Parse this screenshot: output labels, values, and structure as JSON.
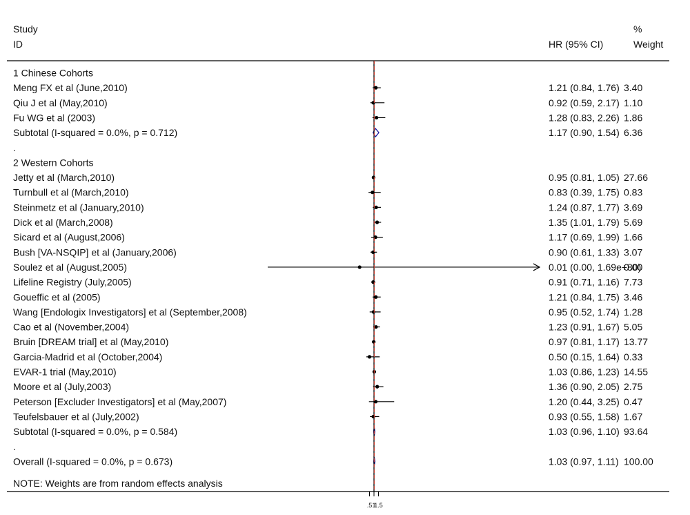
{
  "header": {
    "study_top": "Study",
    "study_bottom": "ID",
    "effect": "HR (95% CI)",
    "weight_top": "%",
    "weight_bottom": "Weight"
  },
  "note": "NOTE: Weights are from random effects analysis",
  "colors": {
    "marker": "#000000",
    "diamond": "#1a1aa0",
    "overall_line": "#c0392b",
    "axis": "#000000"
  },
  "chart_data": {
    "type": "forest",
    "axis_ticks": [
      ".5",
      "1",
      "1.5"
    ],
    "null_value": 1,
    "overall_estimate": 1.03,
    "rows": [
      {
        "kind": "group",
        "label": "1  Chinese Cohorts"
      },
      {
        "kind": "study",
        "label": "Meng FX et al (June,2010)",
        "hr": 1.21,
        "lo": 0.84,
        "hi": 1.76,
        "text": "1.21 (0.84, 1.76)",
        "weight": "3.40"
      },
      {
        "kind": "study",
        "label": "Qiu J et al (May,2010)",
        "hr": 0.92,
        "lo": 0.59,
        "hi": 2.17,
        "text": "0.92 (0.59, 2.17)",
        "weight": "1.10"
      },
      {
        "kind": "study",
        "label": "Fu WG et al (2003)",
        "hr": 1.28,
        "lo": 0.83,
        "hi": 2.26,
        "text": "1.28 (0.83, 2.26)",
        "weight": "1.86"
      },
      {
        "kind": "subtotal",
        "label": "Subtotal  (I-squared = 0.0%, p = 0.712)",
        "hr": 1.17,
        "lo": 0.9,
        "hi": 1.54,
        "text": "1.17 (0.90, 1.54)",
        "weight": "6.36"
      },
      {
        "kind": "spacer",
        "label": "."
      },
      {
        "kind": "group",
        "label": "2  Western Cohorts"
      },
      {
        "kind": "study",
        "label": "Jetty et al (March,2010)",
        "hr": 0.95,
        "lo": 0.81,
        "hi": 1.05,
        "text": "0.95 (0.81, 1.05)",
        "weight": "27.66"
      },
      {
        "kind": "study",
        "label": "Turnbull et al (March,2010)",
        "hr": 0.83,
        "lo": 0.39,
        "hi": 1.75,
        "text": "0.83 (0.39, 1.75)",
        "weight": "0.83"
      },
      {
        "kind": "study",
        "label": "Steinmetz et al (January,2010)",
        "hr": 1.24,
        "lo": 0.87,
        "hi": 1.77,
        "text": "1.24 (0.87, 1.77)",
        "weight": "3.69"
      },
      {
        "kind": "study",
        "label": "Dick et al (March,2008)",
        "hr": 1.35,
        "lo": 1.01,
        "hi": 1.79,
        "text": "1.35 (1.01, 1.79)",
        "weight": "5.69"
      },
      {
        "kind": "study",
        "label": "Sicard et al (August,2006)",
        "hr": 1.17,
        "lo": 0.69,
        "hi": 1.99,
        "text": "1.17 (0.69, 1.99)",
        "weight": "1.66"
      },
      {
        "kind": "study",
        "label": "Bush [VA-NSQIP] et al (January,2006)",
        "hr": 0.9,
        "lo": 0.61,
        "hi": 1.33,
        "text": "0.90 (0.61, 1.33)",
        "weight": "3.07"
      },
      {
        "kind": "study",
        "label": "Soulez et al (August,2005)",
        "hr": 0.01,
        "lo": 0.0,
        "hi": 1.69e+80,
        "text": "0.01 (0.00, 1.69e+80)",
        "weight": "0.00",
        "marker_hint": -0.6,
        "arrow_left": true,
        "arrow_right": true
      },
      {
        "kind": "study",
        "label": "Lifeline Registry (July,2005)",
        "hr": 0.91,
        "lo": 0.71,
        "hi": 1.16,
        "text": "0.91 (0.71, 1.16)",
        "weight": "7.73"
      },
      {
        "kind": "study",
        "label": "Goueffic et al (2005)",
        "hr": 1.21,
        "lo": 0.84,
        "hi": 1.75,
        "text": "1.21 (0.84, 1.75)",
        "weight": "3.46"
      },
      {
        "kind": "study",
        "label": "Wang [Endologix Investigators] et al (September,2008)",
        "hr": 0.95,
        "lo": 0.52,
        "hi": 1.74,
        "text": "0.95 (0.52, 1.74)",
        "weight": "1.28"
      },
      {
        "kind": "study",
        "label": "Cao et al (November,2004)",
        "hr": 1.23,
        "lo": 0.91,
        "hi": 1.67,
        "text": "1.23 (0.91, 1.67)",
        "weight": "5.05"
      },
      {
        "kind": "study",
        "label": "Bruin [DREAM trial] et al (May,2010)",
        "hr": 0.97,
        "lo": 0.81,
        "hi": 1.17,
        "text": "0.97 (0.81, 1.17)",
        "weight": "13.77"
      },
      {
        "kind": "study",
        "label": "Garcia-Madrid et al (October,2004)",
        "hr": 0.5,
        "lo": 0.15,
        "hi": 1.64,
        "text": "0.50 (0.15, 1.64)",
        "weight": "0.33"
      },
      {
        "kind": "study",
        "label": "EVAR-1 trial (May,2010)",
        "hr": 1.03,
        "lo": 0.86,
        "hi": 1.23,
        "text": "1.03 (0.86, 1.23)",
        "weight": "14.55"
      },
      {
        "kind": "study",
        "label": "Moore et al (July,2003)",
        "hr": 1.36,
        "lo": 0.9,
        "hi": 2.05,
        "text": "1.36 (0.90, 2.05)",
        "weight": "2.75"
      },
      {
        "kind": "study",
        "label": "Peterson [Excluder Investigators] et al (May,2007)",
        "hr": 1.2,
        "lo": 0.44,
        "hi": 3.25,
        "text": "1.20 (0.44, 3.25)",
        "weight": "0.47"
      },
      {
        "kind": "study",
        "label": "Teufelsbauer et al (July,2002)",
        "hr": 0.93,
        "lo": 0.55,
        "hi": 1.58,
        "text": "0.93 (0.55, 1.58)",
        "weight": "1.67"
      },
      {
        "kind": "subtotal",
        "label": "Subtotal  (I-squared = 0.0%, p = 0.584)",
        "hr": 1.03,
        "lo": 0.96,
        "hi": 1.1,
        "text": "1.03 (0.96, 1.10)",
        "weight": "93.64"
      },
      {
        "kind": "spacer",
        "label": "."
      },
      {
        "kind": "overall",
        "label": "Overall  (I-squared = 0.0%, p = 0.673)",
        "hr": 1.03,
        "lo": 0.97,
        "hi": 1.11,
        "text": "1.03 (0.97, 1.11)",
        "weight": "100.00"
      }
    ]
  }
}
